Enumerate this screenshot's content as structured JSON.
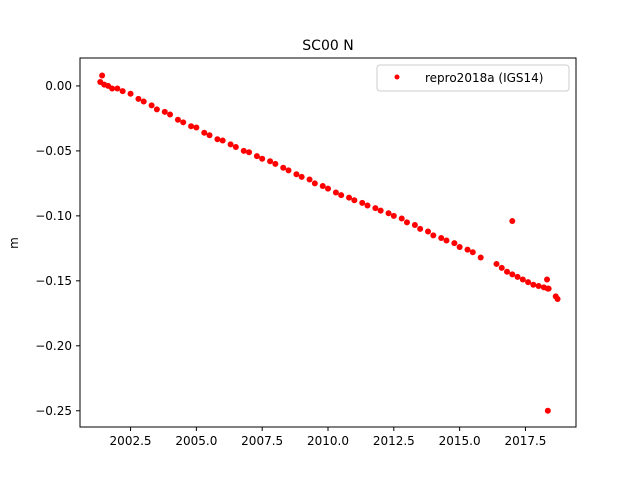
{
  "chart_data": {
    "type": "scatter",
    "title": "SC00 N",
    "xlabel": "",
    "ylabel": "m",
    "xlim": [
      2000.58,
      2019.42
    ],
    "ylim": [
      -0.2625,
      0.0215
    ],
    "xticks": [
      2002.5,
      2005.0,
      2007.5,
      2010.0,
      2012.5,
      2015.0,
      2017.5
    ],
    "xtick_labels": [
      "2002.5",
      "2005.0",
      "2007.5",
      "2010.0",
      "2012.5",
      "2015.0",
      "2017.5"
    ],
    "yticks": [
      0.0,
      -0.05,
      -0.1,
      -0.15,
      -0.2,
      -0.25
    ],
    "ytick_labels": [
      "0.00",
      "−0.05",
      "−0.10",
      "−0.15",
      "−0.20",
      "−0.25"
    ],
    "grid": false,
    "legend": "top-right",
    "color": "#ff0000",
    "series": [
      {
        "name": "repro2018a (IGS14)",
        "x": [
          2001.35,
          2001.42,
          2001.5,
          2001.65,
          2001.8,
          2002.0,
          2002.2,
          2002.5,
          2002.8,
          2003.0,
          2003.3,
          2003.5,
          2003.8,
          2004.0,
          2004.3,
          2004.5,
          2004.8,
          2005.0,
          2005.3,
          2005.5,
          2005.8,
          2006.0,
          2006.3,
          2006.5,
          2006.8,
          2007.0,
          2007.3,
          2007.5,
          2007.8,
          2008.0,
          2008.3,
          2008.5,
          2008.8,
          2009.0,
          2009.3,
          2009.5,
          2009.8,
          2010.0,
          2010.3,
          2010.5,
          2010.8,
          2011.0,
          2011.3,
          2011.5,
          2011.8,
          2012.0,
          2012.3,
          2012.5,
          2012.8,
          2013.0,
          2013.3,
          2013.5,
          2013.8,
          2014.0,
          2014.3,
          2014.5,
          2014.8,
          2015.0,
          2015.3,
          2015.5,
          2015.8,
          2016.4,
          2016.6,
          2016.8,
          2017.0,
          2017.2,
          2017.4,
          2017.6,
          2017.8,
          2018.0,
          2018.2,
          2018.35,
          2018.65,
          2018.72,
          2017.0,
          2018.32,
          2018.35,
          2018.38
        ],
        "y": [
          0.003,
          0.008,
          0.001,
          0.0,
          -0.002,
          -0.002,
          -0.004,
          -0.006,
          -0.01,
          -0.012,
          -0.015,
          -0.018,
          -0.02,
          -0.022,
          -0.026,
          -0.028,
          -0.031,
          -0.032,
          -0.036,
          -0.038,
          -0.041,
          -0.042,
          -0.045,
          -0.047,
          -0.05,
          -0.051,
          -0.054,
          -0.056,
          -0.058,
          -0.06,
          -0.063,
          -0.065,
          -0.068,
          -0.07,
          -0.072,
          -0.075,
          -0.077,
          -0.079,
          -0.082,
          -0.084,
          -0.086,
          -0.088,
          -0.09,
          -0.092,
          -0.094,
          -0.096,
          -0.098,
          -0.1,
          -0.102,
          -0.105,
          -0.107,
          -0.11,
          -0.112,
          -0.115,
          -0.117,
          -0.119,
          -0.121,
          -0.124,
          -0.126,
          -0.128,
          -0.132,
          -0.137,
          -0.14,
          -0.143,
          -0.145,
          -0.147,
          -0.149,
          -0.151,
          -0.153,
          -0.154,
          -0.155,
          -0.156,
          -0.162,
          -0.164,
          -0.104,
          -0.149,
          -0.25,
          -0.156
        ]
      }
    ]
  }
}
